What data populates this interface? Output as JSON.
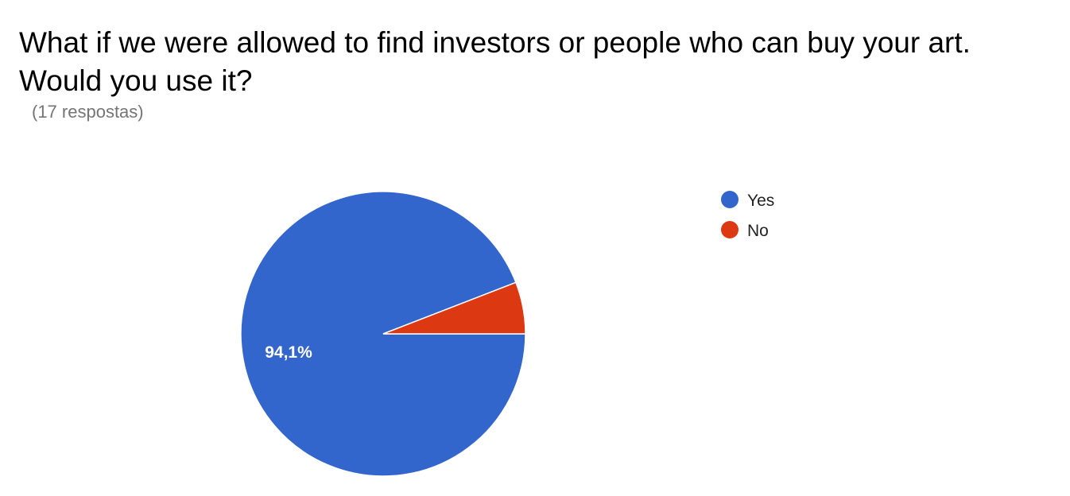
{
  "question": {
    "title": "What if we were allowed to find investors or people who can buy your art. Would you use it?",
    "responses": "(17 respostas)"
  },
  "chart_data": {
    "type": "pie",
    "categories": [
      "Yes",
      "No"
    ],
    "values": [
      16,
      1
    ],
    "percent_labels": [
      "94,1%",
      ""
    ],
    "colors": [
      "#3366cc",
      "#dc3912"
    ],
    "legend": {
      "entries": [
        "Yes",
        "No"
      ],
      "placement": "right"
    },
    "label_color": "#ffffff",
    "legend_text_color": "#222222"
  }
}
